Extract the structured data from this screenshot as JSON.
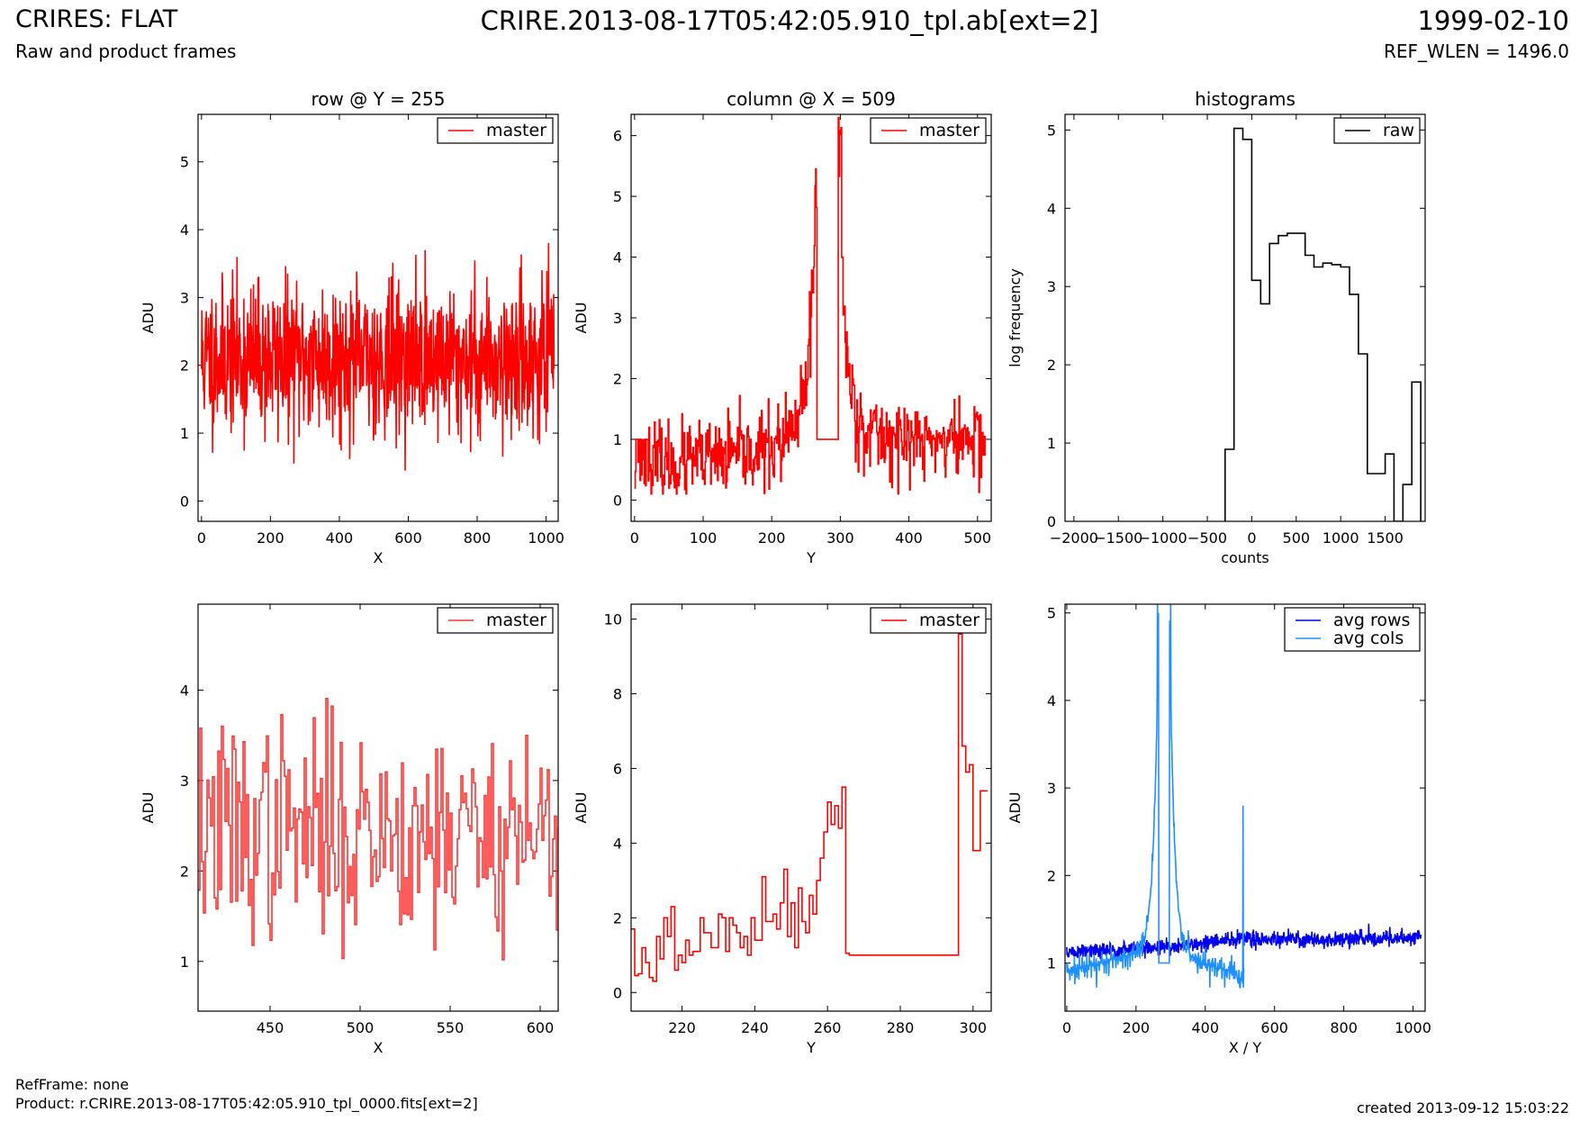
{
  "header": {
    "left_title": "CRIRES: FLAT",
    "left_subtitle": "Raw and product frames",
    "center_title": "CRIRE.2013-08-17T05:42:05.910_tpl.ab[ext=2]",
    "right_title": "1999-02-10",
    "right_subtitle": "REF_WLEN = 1496.0"
  },
  "footer": {
    "refframe": "RefFrame: none",
    "product": "Product: r.CRIRE.2013-08-17T05:42:05.910_tpl_0000.fits[ext=2]",
    "created": "created 2013-09-12 15:03:22"
  },
  "colors": {
    "master": "#ff0000",
    "master_zoom": "#ff3333",
    "raw": "#000000",
    "avg_rows": "#0000ee",
    "avg_cols": "#1e90ff"
  },
  "chart_data": [
    {
      "id": "row_full",
      "type": "line",
      "title": "row @ Y = 255",
      "xlabel": "X",
      "ylabel": "ADU",
      "xlim": [
        -10,
        1035
      ],
      "ylim": [
        -0.3,
        5.7
      ],
      "xticks": [
        0,
        200,
        400,
        600,
        800,
        1000
      ],
      "yticks": [
        0,
        1,
        2,
        3,
        4,
        5
      ],
      "legend": {
        "position": "top-right",
        "entries": [
          "master"
        ]
      },
      "series": [
        {
          "name": "master",
          "color": "#ff0000",
          "step": false,
          "generator": {
            "kind": "noise",
            "n": 1024,
            "x0": 0,
            "x1": 1023,
            "mean": 2.1,
            "sd": 0.55,
            "min": 0.15,
            "max": 4.45,
            "seed": 11
          }
        }
      ]
    },
    {
      "id": "col_full",
      "type": "line",
      "title": "column @ X = 509",
      "xlabel": "Y",
      "ylabel": "ADU",
      "xlim": [
        -5,
        520
      ],
      "ylim": [
        -0.35,
        6.35
      ],
      "xticks": [
        0,
        100,
        200,
        300,
        400,
        500
      ],
      "yticks": [
        0,
        1,
        2,
        3,
        4,
        5,
        6
      ],
      "legend": {
        "position": "top-right",
        "entries": [
          "master"
        ]
      },
      "series": [
        {
          "name": "master",
          "color": "#ff0000",
          "step": true,
          "generator": {
            "kind": "column",
            "n": 512,
            "gap": [
              266,
              296
            ],
            "gap_value": 1.0,
            "seed": 23
          }
        }
      ]
    },
    {
      "id": "hist",
      "type": "step",
      "title": "histograms",
      "xlabel": "counts",
      "ylabel": "log frequency",
      "xlim": [
        -2100,
        1950
      ],
      "ylim": [
        0,
        5.2
      ],
      "xticks": [
        -2000,
        -1500,
        -1000,
        -500,
        0,
        500,
        1000,
        1500
      ],
      "yticks": [
        0,
        1,
        2,
        3,
        4,
        5
      ],
      "legend": {
        "position": "top-right",
        "entries": [
          "raw"
        ]
      },
      "series": [
        {
          "name": "raw",
          "color": "#000000",
          "bins": [
            -300,
            -200,
            -100,
            0,
            100,
            200,
            300,
            400,
            500,
            600,
            700,
            800,
            900,
            1000,
            1100,
            1200,
            1300,
            1400,
            1500,
            1600,
            1700,
            1800,
            1900
          ],
          "values": [
            0.92,
            5.02,
            4.88,
            3.08,
            2.78,
            3.55,
            3.65,
            3.68,
            3.68,
            3.4,
            3.25,
            3.3,
            3.28,
            3.25,
            2.9,
            2.14,
            0.61,
            0.61,
            0.86,
            0.0,
            0.47,
            1.78
          ]
        }
      ]
    },
    {
      "id": "row_zoom",
      "type": "line",
      "title": "",
      "xlabel": "X",
      "ylabel": "ADU",
      "xlim": [
        410,
        610
      ],
      "ylim": [
        0.45,
        4.95
      ],
      "xticks": [
        450,
        500,
        550,
        600
      ],
      "yticks": [
        1,
        2,
        3,
        4
      ],
      "legend": {
        "position": "top-right",
        "entries": [
          "master"
        ]
      },
      "series": [
        {
          "name": "master",
          "color": "#ff3333",
          "step": true,
          "generator": {
            "kind": "noise",
            "n": 201,
            "x0": 410,
            "x1": 610,
            "mean": 2.45,
            "sd": 0.6,
            "min": 0.78,
            "max": 4.02,
            "seed": 37
          }
        }
      ]
    },
    {
      "id": "col_zoom",
      "type": "line",
      "title": "",
      "xlabel": "Y",
      "ylabel": "ADU",
      "xlim": [
        206,
        305
      ],
      "ylim": [
        -0.5,
        10.4
      ],
      "xticks": [
        220,
        240,
        260,
        280,
        300
      ],
      "yticks": [
        0,
        2,
        4,
        6,
        8,
        10
      ],
      "legend": {
        "position": "top-right",
        "entries": [
          "master"
        ]
      },
      "series": [
        {
          "name": "master",
          "color": "#ff0000",
          "step": true,
          "x": [
            206,
            207,
            208,
            209,
            210,
            211,
            212,
            213,
            214,
            215,
            216,
            217,
            218,
            219,
            220,
            221,
            222,
            223,
            224,
            225,
            226,
            227,
            228,
            229,
            230,
            231,
            232,
            233,
            234,
            235,
            236,
            237,
            238,
            239,
            240,
            241,
            242,
            243,
            244,
            245,
            246,
            247,
            248,
            249,
            250,
            251,
            252,
            253,
            254,
            255,
            256,
            257,
            258,
            259,
            260,
            261,
            262,
            263,
            264,
            265,
            266,
            296,
            297,
            298,
            299,
            300,
            301,
            302,
            303,
            304
          ],
          "values": [
            1.7,
            0.45,
            0.5,
            1.2,
            0.8,
            0.4,
            0.3,
            1.5,
            0.9,
            2.0,
            1.5,
            2.3,
            0.6,
            1.0,
            0.8,
            1.4,
            1.0,
            1.1,
            1.1,
            2.0,
            1.6,
            1.6,
            1.2,
            1.2,
            2.1,
            2.0,
            1.1,
            2.0,
            1.8,
            1.6,
            1.2,
            1.5,
            1.0,
            2.0,
            1.4,
            1.4,
            3.1,
            1.9,
            1.9,
            2.1,
            1.7,
            2.4,
            3.3,
            1.5,
            2.4,
            1.2,
            2.8,
            1.9,
            1.6,
            2.6,
            2.1,
            3.0,
            3.6,
            4.3,
            5.1,
            4.5,
            5.0,
            4.4,
            5.5,
            1.05,
            1.0,
            9.6,
            6.6,
            5.9,
            6.1,
            3.8,
            3.8,
            5.4,
            5.4,
            5.4
          ]
        }
      ]
    },
    {
      "id": "avg",
      "type": "line",
      "title": "",
      "xlabel": "X / Y",
      "ylabel": "ADU",
      "xlim": [
        -5,
        1035
      ],
      "ylim": [
        0.45,
        5.1
      ],
      "xticks": [
        0,
        200,
        400,
        600,
        800,
        1000
      ],
      "yticks": [
        1,
        2,
        3,
        4,
        5
      ],
      "legend": {
        "position": "top-right",
        "entries": [
          "avg rows",
          "avg cols"
        ]
      },
      "series": [
        {
          "name": "avg rows",
          "color": "#0000ee",
          "step": false,
          "generator": {
            "kind": "avgrows",
            "n": 1024,
            "seed": 51
          }
        },
        {
          "name": "avg cols",
          "color": "#1e90ff",
          "step": false,
          "generator": {
            "kind": "avgcols",
            "n": 512,
            "seed": 73
          }
        }
      ]
    }
  ]
}
